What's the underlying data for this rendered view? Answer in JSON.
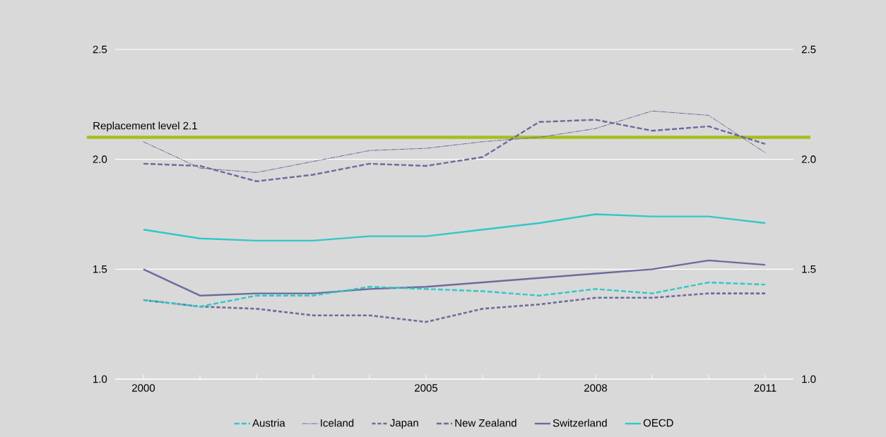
{
  "chart_data": {
    "type": "line",
    "x": [
      2000,
      2001,
      2002,
      2003,
      2004,
      2005,
      2006,
      2007,
      2008,
      2009,
      2010,
      2011
    ],
    "xlim": [
      1999.5,
      2011.5
    ],
    "xticks": [
      2000,
      {
        "value": 2001,
        "label": null
      },
      {
        "value": 2002,
        "label": null
      },
      {
        "value": 2003,
        "label": null
      },
      {
        "value": 2004,
        "label": null
      },
      2005,
      {
        "value": 2006,
        "label": null
      },
      {
        "value": 2007,
        "label": null
      },
      2008,
      {
        "value": 2009,
        "label": null
      },
      {
        "value": 2010,
        "label": null
      },
      2011
    ],
    "ylim": [
      1.0,
      2.5
    ],
    "yticks": [
      {
        "value": 1,
        "label": "1.0"
      },
      1.5,
      {
        "value": 2,
        "label": "2.0"
      },
      2.5
    ],
    "y2lim": [
      1.0,
      2.5
    ],
    "y2ticks": [
      {
        "value": 1,
        "label": "1.0"
      },
      1.5,
      {
        "value": 2,
        "label": "2.0"
      },
      2.5
    ],
    "grid": "y",
    "legend": "bottom",
    "marker": "none",
    "ref_lines": [
      {
        "axis": "y",
        "value": 2.1,
        "label": "Replacement level 2.1",
        "color": "#a9bd1c"
      }
    ],
    "series": [
      {
        "name": "Austria",
        "color": "#33c7c7",
        "line_style": "dashed",
        "values": [
          1.36,
          1.33,
          1.38,
          1.38,
          1.42,
          1.41,
          1.4,
          1.38,
          1.41,
          1.39,
          1.44,
          1.43
        ]
      },
      {
        "name": "Iceland",
        "color": "#6b6b9e",
        "line_style": "dashdot",
        "values": [
          2.08,
          1.96,
          1.94,
          1.99,
          2.04,
          2.05,
          2.08,
          2.1,
          2.14,
          2.22,
          2.2,
          2.03
        ]
      },
      {
        "name": "Japan",
        "color": "#6b6b9e",
        "line_style": "dotted",
        "values": [
          1.36,
          1.33,
          1.32,
          1.29,
          1.29,
          1.26,
          1.32,
          1.34,
          1.37,
          1.37,
          1.39,
          1.39
        ]
      },
      {
        "name": "New Zealand",
        "color": "#6b6b9e",
        "line_style": "dashed",
        "values": [
          1.98,
          1.97,
          1.9,
          1.93,
          1.98,
          1.97,
          2.01,
          2.17,
          2.18,
          2.13,
          2.15,
          2.07
        ]
      },
      {
        "name": "Switzerland",
        "color": "#6b6b9e",
        "line_style": "solid",
        "values": [
          1.5,
          1.38,
          1.39,
          1.39,
          1.41,
          1.42,
          1.44,
          1.46,
          1.48,
          1.5,
          1.54,
          1.52
        ]
      },
      {
        "name": "OECD",
        "color": "#33c7c7",
        "line_style": "solid",
        "values": [
          1.68,
          1.64,
          1.63,
          1.63,
          1.65,
          1.65,
          1.68,
          1.71,
          1.75,
          1.74,
          1.74,
          1.71
        ]
      }
    ]
  }
}
